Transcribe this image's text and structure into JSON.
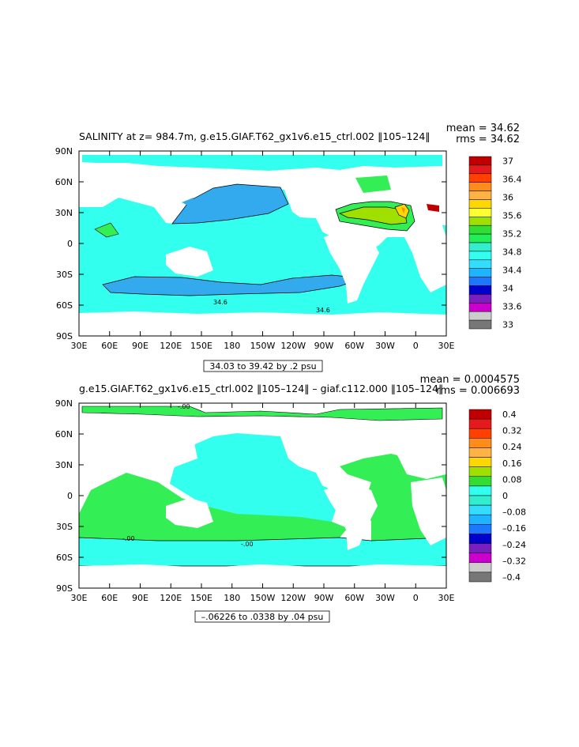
{
  "panels": [
    {
      "title": "SALINITY at z= 984.7m, g.e15.GIAF.T62_gx1v6.e15_ctrl.002  ‖105–124‖",
      "mean": "mean = 34.62",
      "rms": "rms = 34.62",
      "range_note": "34.03 to 39.42 by .2 psu",
      "contour_labels": [
        "34.6",
        "34.6"
      ],
      "colorbar": {
        "labels": [
          "37",
          "36.4",
          "36",
          "35.6",
          "35.2",
          "34.8",
          "34.4",
          "34",
          "33.6",
          "33"
        ],
        "colors": [
          "#c00000",
          "#e41a1c",
          "#ff4000",
          "#ff8c1a",
          "#ffb347",
          "#ffd700",
          "#ffff33",
          "#a0e000",
          "#33dd33",
          "#22ee55",
          "#33eecc",
          "#33ffee",
          "#33ddff",
          "#1eb4ff",
          "#1e78ff",
          "#0000cc",
          "#7a1fbf",
          "#cc00cc",
          "#cccccc",
          "#777777"
        ]
      },
      "colors": {
        "ocean": "#33ffee",
        "deep": "#33aaee",
        "atlantic": "#33ee55",
        "high": "#ffd700"
      }
    },
    {
      "title": "g.e15.GIAF.T62_gx1v6.e15_ctrl.002  ‖105–124‖  –  giaf.c112.000 ‖105–124‖",
      "mean": "mean = 0.0004575",
      "rms": "rms = 0.006693",
      "range_note": "–.06226 to .0338 by .04 psu",
      "contour_labels": [
        "-.00",
        "-.00",
        "-.00"
      ],
      "colorbar": {
        "labels": [
          "0.4",
          "0.32",
          "0.24",
          "0.16",
          "0.08",
          "0",
          "–0.08",
          "–0.16",
          "–0.24",
          "–0.32",
          "–0.4"
        ],
        "colors": [
          "#c00000",
          "#e41a1c",
          "#ff4000",
          "#ff8c1a",
          "#ffb347",
          "#ffd700",
          "#a0e000",
          "#33dd33",
          "#33ffee",
          "#33eecc",
          "#33ddff",
          "#1eb4ff",
          "#1e78ff",
          "#0000cc",
          "#7a1fbf",
          "#cc00cc",
          "#cccccc",
          "#777777"
        ]
      },
      "colors": {
        "ocean": "#33ffee",
        "positive": "#33ee55"
      }
    }
  ],
  "axes": {
    "lat_labels": [
      "90N",
      "60N",
      "30N",
      "0",
      "30S",
      "60S",
      "90S"
    ],
    "lon_labels": [
      "30E",
      "60E",
      "90E",
      "120E",
      "150E",
      "180",
      "150W",
      "120W",
      "90W",
      "60W",
      "30W",
      "0",
      "30E"
    ]
  }
}
